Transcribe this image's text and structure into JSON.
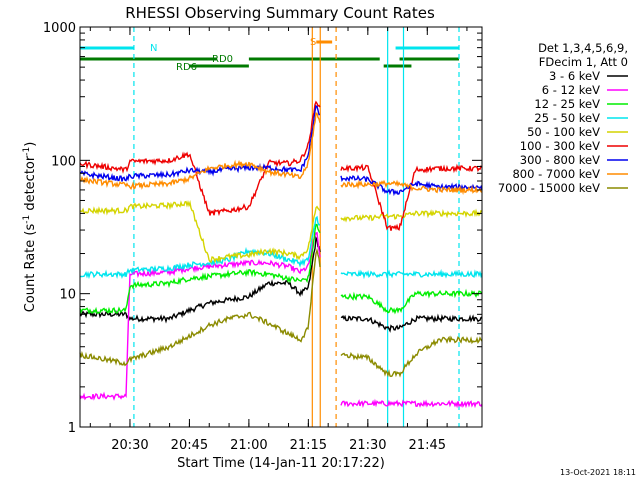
{
  "chart_data": {
    "type": "line",
    "title": "RHESSI Observing Summary Count Rates",
    "xlabel": "Start Time (14-Jan-11 20:17:22)",
    "ylabel": "Count Rate (s⁻¹ detector⁻¹)",
    "ylabel_base": "Count Rate (s",
    "ylabel_mid": " detector",
    "ylabel_end": ")",
    "ylabel_exp": "-1",
    "yscale": "log",
    "ylim": [
      1,
      1000
    ],
    "xlim_minutes": [
      20.29,
      21.98
    ],
    "x_ticks": [
      "20:30",
      "20:45",
      "21:00",
      "21:15",
      "21:30",
      "21:45"
    ],
    "y_ticks": [
      "1",
      "10",
      "100",
      "1000"
    ],
    "legend": {
      "header": [
        "Det 1,3,4,5,6,9,",
        "FDecim 1, Att 0"
      ],
      "placement": "right"
    },
    "footer_date": "13-Oct-2021 18:11",
    "flags": {
      "N": {
        "label": "N",
        "color": "#00e5ee",
        "intervals": [
          [
            "20:17",
            "20:31"
          ],
          [
            "21:37",
            "21:53"
          ]
        ]
      },
      "S": {
        "label": "S",
        "color": "#ff8c00",
        "intervals": [
          [
            "21:17",
            "21:21"
          ]
        ]
      },
      "RD0": {
        "label": "RD0",
        "color": "#007a00",
        "intervals": [
          [
            "20:17",
            "20:52"
          ],
          [
            "21:00",
            "21:33"
          ],
          [
            "21:38",
            "21:53"
          ]
        ]
      },
      "RD6": {
        "label": "RD6",
        "color": "#007a00",
        "intervals": [
          [
            "20:45",
            "21:00"
          ],
          [
            "21:34",
            "21:41"
          ]
        ]
      }
    },
    "vertical_markers": [
      {
        "time": "20:31",
        "color": "#00e5ee",
        "style": "dashed"
      },
      {
        "time": "21:35",
        "color": "#00e5ee",
        "style": "solid"
      },
      {
        "time": "21:39",
        "color": "#00e5ee",
        "style": "solid"
      },
      {
        "time": "21:53",
        "color": "#00e5ee",
        "style": "dashed"
      },
      {
        "time": "21:16",
        "color": "#ff8c00",
        "style": "solid"
      },
      {
        "time": "21:18",
        "color": "#ff8c00",
        "style": "solid"
      },
      {
        "time": "21:22",
        "color": "#ff8c00",
        "style": "dashed"
      }
    ],
    "data_gaps": [
      [
        "21:18",
        "21:23"
      ]
    ],
    "series": [
      {
        "name": "3 - 6 keV",
        "color": "#000000",
        "x": [
          "20:17",
          "20:29",
          "20:30",
          "20:40",
          "20:45",
          "20:50",
          "20:55",
          "21:00",
          "21:05",
          "21:10",
          "21:13",
          "21:15",
          "21:17",
          "21:23",
          "21:30",
          "21:35",
          "21:38",
          "21:42",
          "21:48",
          "21:53"
        ],
        "y": [
          7.0,
          7.0,
          6.5,
          6.5,
          7.5,
          8.5,
          9.0,
          9.5,
          12.0,
          12.0,
          10.0,
          11.0,
          26.0,
          6.5,
          6.5,
          5.5,
          5.5,
          6.5,
          6.5,
          6.5
        ]
      },
      {
        "name": "6 - 12 keV",
        "color": "#ff00ff",
        "x": [
          "20:17",
          "20:29",
          "20:30",
          "20:40",
          "20:45",
          "20:50",
          "20:55",
          "21:00",
          "21:05",
          "21:10",
          "21:13",
          "21:15",
          "21:17",
          "21:23",
          "21:30",
          "21:35",
          "21:38",
          "21:42",
          "21:48",
          "21:53"
        ],
        "y": [
          1.7,
          1.7,
          14.0,
          14.5,
          15.5,
          16.0,
          16.5,
          17.0,
          17.0,
          16.0,
          14.5,
          16.0,
          30.0,
          1.5,
          1.5,
          1.5,
          1.5,
          1.5,
          1.5,
          1.5
        ]
      },
      {
        "name": "12 - 25 keV",
        "color": "#00ee00",
        "x": [
          "20:17",
          "20:29",
          "20:30",
          "20:40",
          "20:45",
          "20:50",
          "20:55",
          "21:00",
          "21:05",
          "21:10",
          "21:13",
          "21:15",
          "21:17",
          "21:23",
          "21:30",
          "21:35",
          "21:38",
          "21:42",
          "21:48",
          "21:53"
        ],
        "y": [
          7.5,
          7.5,
          11.5,
          12.0,
          13.0,
          13.5,
          14.0,
          14.5,
          14.0,
          13.0,
          12.5,
          13.0,
          34.0,
          9.5,
          9.5,
          7.5,
          7.5,
          10.0,
          10.0,
          10.0
        ]
      },
      {
        "name": "25 - 50 keV",
        "color": "#00e5ee",
        "x": [
          "20:17",
          "20:29",
          "20:30",
          "20:40",
          "20:45",
          "20:50",
          "20:55",
          "21:00",
          "21:05",
          "21:10",
          "21:13",
          "21:15",
          "21:17",
          "21:23",
          "21:30",
          "21:35",
          "21:38",
          "21:42",
          "21:48",
          "21:53"
        ],
        "y": [
          14.0,
          14.0,
          15.0,
          15.5,
          16.5,
          17.0,
          18.0,
          21.0,
          20.0,
          18.0,
          17.0,
          18.0,
          38.0,
          14.0,
          14.0,
          14.0,
          14.0,
          14.0,
          14.0,
          14.0
        ]
      },
      {
        "name": "50 - 100 keV",
        "color": "#d4d400",
        "x": [
          "20:17",
          "20:29",
          "20:30",
          "20:40",
          "20:45",
          "20:50",
          "20:55",
          "21:00",
          "21:05",
          "21:10",
          "21:13",
          "21:15",
          "21:17",
          "21:23",
          "21:30",
          "21:35",
          "21:38",
          "21:42",
          "21:48",
          "21:53"
        ],
        "y": [
          42.0,
          42.0,
          45.0,
          46.0,
          48.0,
          18.0,
          19.0,
          19.5,
          21.0,
          20.0,
          19.0,
          22.0,
          45.0,
          37.0,
          37.0,
          38.0,
          38.0,
          40.0,
          40.0,
          40.0
        ]
      },
      {
        "name": "100 - 300 keV",
        "color": "#ee0000",
        "x": [
          "20:17",
          "20:29",
          "20:30",
          "20:40",
          "20:45",
          "20:50",
          "20:55",
          "21:00",
          "21:05",
          "21:10",
          "21:13",
          "21:15",
          "21:17",
          "21:23",
          "21:30",
          "21:35",
          "21:38",
          "21:42",
          "21:48",
          "21:53"
        ],
        "y": [
          95.0,
          85.0,
          98.0,
          100.0,
          112.0,
          40.0,
          42.0,
          45.0,
          96.0,
          95.0,
          100.0,
          130.0,
          290.0,
          87.0,
          88.0,
          31.0,
          31.0,
          85.0,
          87.0,
          87.0
        ]
      },
      {
        "name": "300 - 800 keV",
        "color": "#0000ee",
        "x": [
          "20:17",
          "20:29",
          "20:30",
          "20:40",
          "20:45",
          "20:50",
          "20:55",
          "21:00",
          "21:05",
          "21:10",
          "21:13",
          "21:15",
          "21:17",
          "21:23",
          "21:30",
          "21:35",
          "21:38",
          "21:42",
          "21:48",
          "21:53"
        ],
        "y": [
          80.0,
          72.0,
          76.0,
          78.0,
          84.0,
          82.0,
          86.0,
          88.0,
          88.0,
          85.0,
          84.0,
          110.0,
          260.0,
          74.0,
          72.0,
          58.0,
          58.0,
          67.0,
          63.0,
          63.0
        ]
      },
      {
        "name": "800 - 7000 keV",
        "color": "#ff8c00",
        "x": [
          "20:17",
          "20:29",
          "20:30",
          "20:40",
          "20:45",
          "20:50",
          "20:55",
          "21:00",
          "21:05",
          "21:10",
          "21:13",
          "21:15",
          "21:17",
          "21:23",
          "21:30",
          "21:35",
          "21:38",
          "21:42",
          "21:48",
          "21:53"
        ],
        "y": [
          72.0,
          65.0,
          64.0,
          67.0,
          73.0,
          87.0,
          92.0,
          95.0,
          82.0,
          78.0,
          74.0,
          95.0,
          230.0,
          66.0,
          66.0,
          67.0,
          66.0,
          62.0,
          60.0,
          60.0
        ]
      },
      {
        "name": "7000 - 15000 keV",
        "color": "#8b8b00",
        "x": [
          "20:17",
          "20:29",
          "20:30",
          "20:40",
          "20:45",
          "20:50",
          "20:55",
          "21:00",
          "21:05",
          "21:10",
          "21:13",
          "21:15",
          "21:17",
          "21:23",
          "21:30",
          "21:35",
          "21:38",
          "21:42",
          "21:48",
          "21:53"
        ],
        "y": [
          3.5,
          3.0,
          3.2,
          4.0,
          4.8,
          5.8,
          6.5,
          7.0,
          6.0,
          5.0,
          4.5,
          5.5,
          22.0,
          3.5,
          3.3,
          2.5,
          2.5,
          3.5,
          4.5,
          4.5
        ]
      }
    ]
  }
}
